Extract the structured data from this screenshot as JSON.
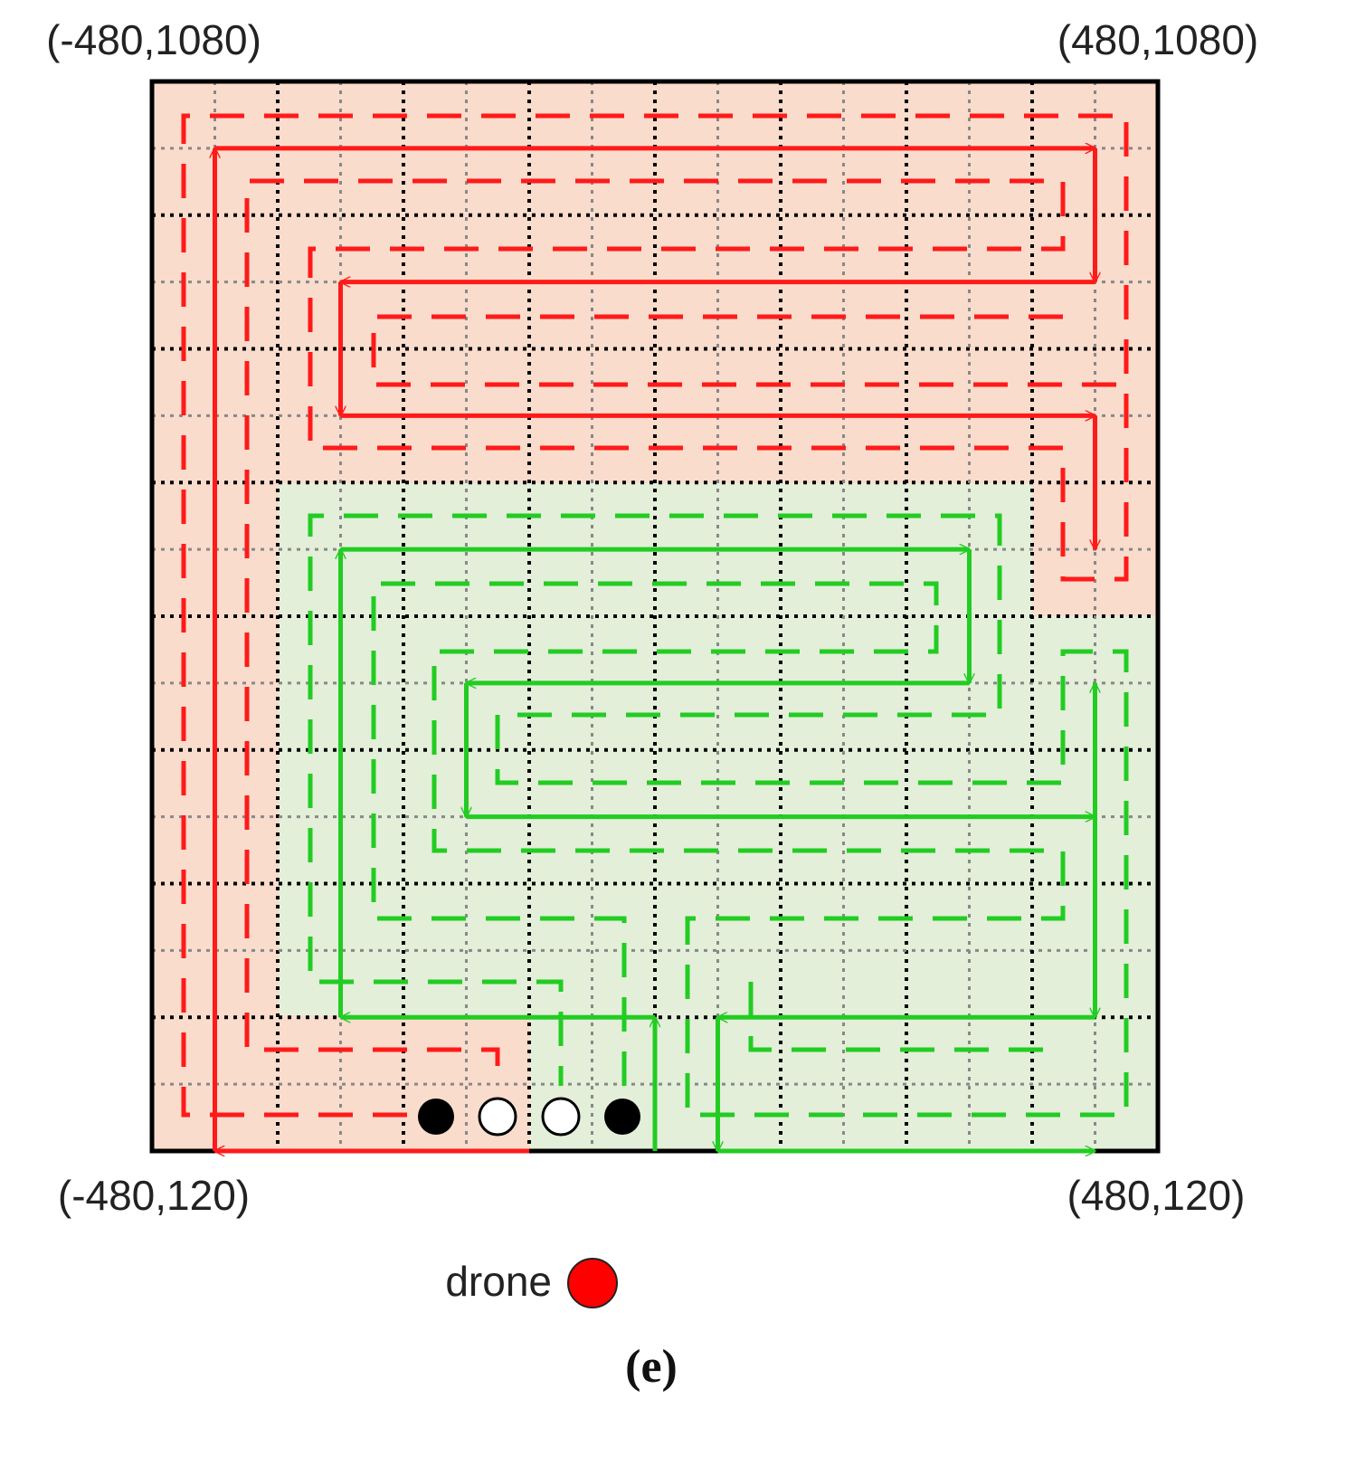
{
  "corners": {
    "top_left": "(-480,1080)",
    "top_right": "(480,1080)",
    "bottom_left": "(-480,120)",
    "bottom_right": "(480,120)"
  },
  "legend": {
    "label": "drone"
  },
  "caption": "(e)"
}
